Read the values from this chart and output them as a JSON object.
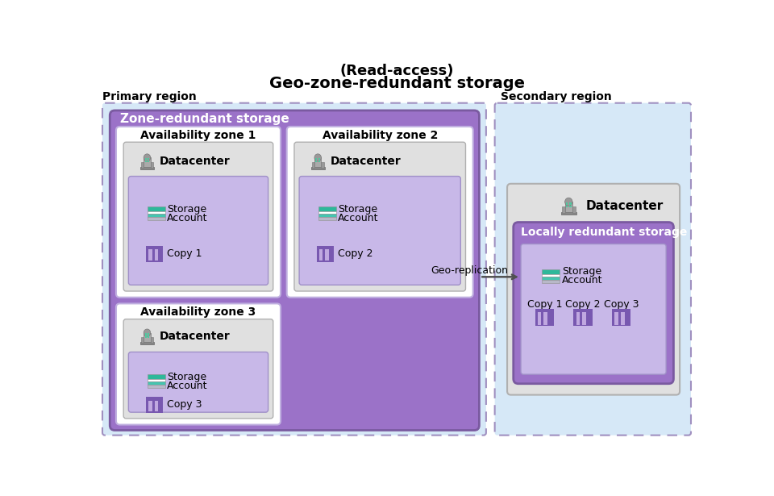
{
  "title_line1": "(Read-access)",
  "title_line2": "Geo-zone-redundant storage",
  "primary_label": "Primary region",
  "secondary_label": "Secondary region",
  "geo_replication_label": "Geo-replication",
  "zone_redundant_label": "Zone-redundant storage",
  "locally_redundant_label": "Locally redundant storage",
  "datacenter_label": "Datacenter",
  "storage_label1": "Storage",
  "storage_label2": "Account",
  "az_labels": [
    "Availability zone 1",
    "Availability zone 2",
    "Availability zone 3"
  ],
  "copy_labels": [
    "Copy 1",
    "Copy 2",
    "Copy 3"
  ],
  "colors": {
    "bg": "#ffffff",
    "primary_bg": "#d6e8f7",
    "secondary_bg": "#d6e8f7",
    "region_border": "#9ab0d0",
    "zrs_bg": "#9b72c8",
    "zrs_border": "#7a5aa0",
    "az_bg": "#ffffff",
    "az_border": "#c0b0e0",
    "dc_bg": "#e0e0e0",
    "dc_border": "#b0b0b0",
    "lrs_inner_bg": "#c8b8e8",
    "lrs_inner_border": "#a090c8",
    "storage_teal1": "#2db89a",
    "storage_teal2": "#45c5b0",
    "storage_white": "#ffffff",
    "storage_gray": "#b8b8c8",
    "copy_purple": "#7858b0",
    "copy_light": "#c0a8e0",
    "arrow_color": "#505050",
    "text_dark": "#000000",
    "text_white": "#ffffff",
    "dashed_color": "#a090c0"
  },
  "figsize": [
    9.6,
    6.15
  ],
  "dpi": 100
}
